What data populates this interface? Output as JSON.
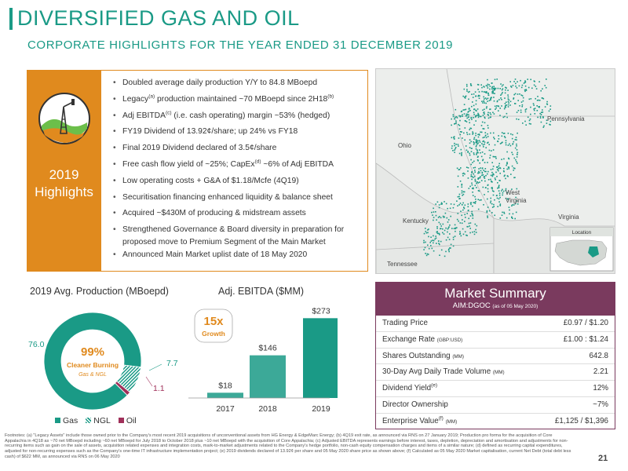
{
  "header": {
    "title": "DIVERSIFIED GAS AND OIL",
    "subtitle": "CORPORATE HIGHLIGHTS FOR THE YEAR ENDED 31 DECEMBER 2019"
  },
  "highlights": {
    "label_line1": "2019",
    "label_line2": "Highlights",
    "bullets": [
      {
        "pre": "Doubled average daily production Y/Y to 84.8 MBoepd",
        "sup": "",
        "post": "",
        "sup2": ""
      },
      {
        "pre": "Legacy",
        "sup": "(a)",
        "post": " production maintained ~70 MBoepd since 2H18",
        "sup2": "(b)"
      },
      {
        "pre": "Adj EBITDA",
        "sup": "(c)",
        "post": " (i.e. cash operating) margin ~53% (hedged)",
        "sup2": ""
      },
      {
        "pre": "FY19 Dividend of 13.92¢/share; up 24% vs FY18",
        "sup": "",
        "post": "",
        "sup2": ""
      },
      {
        "pre": "Final 2019 Dividend declared of 3.5¢/share",
        "sup": "",
        "post": "",
        "sup2": ""
      },
      {
        "pre": "Free cash flow yield of ~25%; CapEx",
        "sup": "(d)",
        "post": " ~6% of Adj EBITDA",
        "sup2": ""
      },
      {
        "pre": "Low operating costs + G&A of $1.18/Mcfe (4Q19)",
        "sup": "",
        "post": "",
        "sup2": ""
      },
      {
        "pre": "Securitisation financing enhanced liquidity & balance sheet",
        "sup": "",
        "post": "",
        "sup2": ""
      },
      {
        "pre": "Acquired ~$430M of producing & midstream assets",
        "sup": "",
        "post": "",
        "sup2": ""
      },
      {
        "pre": "Strengthened Governance & Board diversity in preparation for proposed move to Premium Segment of the Main Market",
        "sup": "",
        "post": "",
        "sup2": ""
      },
      {
        "pre": "Announced Main Market uplist date of 18 May 2020",
        "sup": "",
        "post": "",
        "sup2": ""
      }
    ]
  },
  "map": {
    "labels": {
      "pennsylvania": "Pennsylvania",
      "ohio": "Ohio",
      "west": "West",
      "virginia_wv": "Virginia",
      "kentucky": "Kentucky",
      "virginia": "Virginia",
      "tennessee": "Tennessee",
      "location": "Location"
    }
  },
  "production": {
    "title": "2019 Avg. Production (MBoepd)",
    "center_pct": "99%",
    "center_line1": "Cleaner Burning",
    "center_line2": "Gas & NGL",
    "legend": [
      "Gas",
      "NGL",
      "Oil"
    ],
    "colors": {
      "gas": "#1a9a86",
      "ngl": "#1a9a86",
      "oil": "#a0305a"
    }
  },
  "ebitda": {
    "title": "Adj. EBITDA ($MM)",
    "badge_value": "15x",
    "badge_label": "Growth"
  },
  "chart_data": [
    {
      "type": "pie",
      "title": "2019 Avg. Production (MBoepd)",
      "categories": [
        "Gas",
        "NGL",
        "Oil"
      ],
      "values": [
        76.0,
        7.7,
        1.1
      ],
      "value_labels": [
        "76.0",
        "7.7",
        "1.1"
      ],
      "legend": "bottom"
    },
    {
      "type": "bar",
      "title": "Adj. EBITDA ($MM)",
      "categories": [
        "2017",
        "2018",
        "2019"
      ],
      "values": [
        18,
        146,
        273
      ],
      "value_labels": [
        "$18",
        "$146",
        "$273"
      ],
      "ylim": [
        0,
        290
      ]
    }
  ],
  "market": {
    "title": "Market Summary",
    "ticker": "AIM:DGOC",
    "asof": "(as of 05 May 2020)",
    "rows": [
      {
        "key": "Trading Price",
        "unit": "",
        "sup": "",
        "value": "£0.97 / $1.20"
      },
      {
        "key": "Exchange Rate",
        "unit": "(GBP:USD)",
        "sup": "",
        "value": "£1.00 : $1.24"
      },
      {
        "key": "Shares Outstanding",
        "unit": "(MM)",
        "sup": "",
        "value": "642.8"
      },
      {
        "key": "30-Day Avg Daily Trade Volume",
        "unit": "(MM)",
        "sup": "",
        "value": "2.21"
      },
      {
        "key": "Dividend Yield",
        "unit": "",
        "sup": "(e)",
        "value": "12%"
      },
      {
        "key": "Director Ownership",
        "unit": "",
        "sup": "",
        "value": "~7%"
      },
      {
        "key": "Enterprise Value",
        "unit": "(MM)",
        "sup": "(f)",
        "value": "£1,125 / $1,396"
      }
    ]
  },
  "footnote": "Footnotes: (a) \"Legacy Assets\" include those owned prior to the Company's most recent 2019 acquisitions of unconventional assets from HG Energy & EdgeMarc Energy; (b) 4Q19 exit rate, as announced via RNS on 27 January 2019; Production pro forma for the acquisition of Core Appalachia in 4Q18 as ~70 net MBoepd including ~60 net MBoepd for July 2018 to October 2018 plus ~10 net MBoepd with the acquisition of Core Appalachia; (c) Adjusted EBITDA represents earnings before interest, taxes, depletion, depreciation and amortisation and adjustments for non-recurring items such as gain on the sale of assets, acquisition related expenses and integration costs, mark-to-market adjustments related to the Company's hedge portfolio, non-cash equity compensation charges and items of a similar nature; (d) defined as recurring capital expenditures, adjusted for non-recurring expenses such as the Company's one-time IT infrastructure implementation project; (e) 2019 dividends declared of 13.92¢ per share and 05 May 2020 share price as shown above; (f) Calculated as 05 May 2020 Market capitalisation, current Net Debt (total debt less cash) of $622 MM, as announced via RNS on 06 May 2020",
  "page_number": "21"
}
